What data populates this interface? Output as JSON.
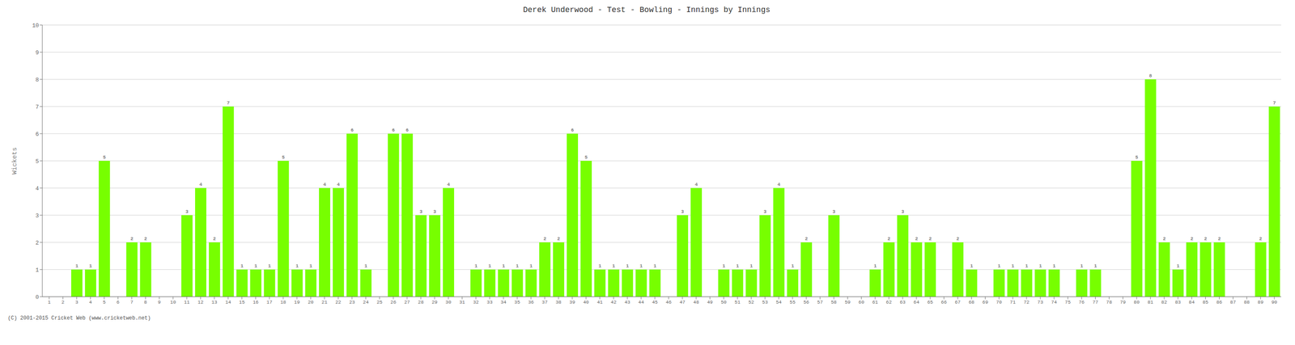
{
  "chart_data": {
    "type": "bar",
    "title": "Derek Underwood - Test - Bowling - Innings by Innings",
    "ylabel": "Wickets",
    "categories": [
      "1",
      "2",
      "3",
      "4",
      "5",
      "6",
      "7",
      "8",
      "9",
      "10",
      "11",
      "12",
      "13",
      "14",
      "15",
      "16",
      "17",
      "18",
      "19",
      "20",
      "21",
      "22",
      "23",
      "24",
      "25",
      "26",
      "27",
      "28",
      "29",
      "30",
      "31",
      "32",
      "33",
      "34",
      "35",
      "36",
      "37",
      "38",
      "39",
      "40",
      "41",
      "42",
      "43",
      "44",
      "45",
      "46",
      "47",
      "48",
      "49",
      "50",
      "51",
      "52",
      "53",
      "54",
      "55",
      "56",
      "57",
      "58",
      "59",
      "60",
      "61",
      "62",
      "63",
      "64",
      "65",
      "66",
      "67",
      "68",
      "69",
      "70",
      "71",
      "72",
      "73",
      "74",
      "75",
      "76",
      "77",
      "78",
      "79",
      "80",
      "81",
      "82",
      "83",
      "84",
      "85",
      "86",
      "87",
      "88",
      "89",
      "90"
    ],
    "values": [
      0,
      0,
      1,
      1,
      5,
      0,
      2,
      2,
      0,
      0,
      3,
      4,
      2,
      7,
      1,
      1,
      1,
      5,
      1,
      1,
      4,
      4,
      6,
      1,
      0,
      6,
      6,
      3,
      3,
      4,
      0,
      1,
      1,
      1,
      1,
      1,
      2,
      2,
      6,
      5,
      1,
      1,
      1,
      1,
      1,
      0,
      3,
      4,
      0,
      1,
      1,
      1,
      3,
      4,
      1,
      2,
      0,
      3,
      0,
      0,
      1,
      2,
      3,
      2,
      2,
      0,
      2,
      1,
      0,
      1,
      1,
      1,
      1,
      1,
      0,
      1,
      1,
      0,
      0,
      5,
      8,
      2,
      1,
      2,
      2,
      2,
      0,
      0,
      2,
      7
    ],
    "color": "#77ff00",
    "ylim": [
      0,
      10
    ],
    "yticks": [
      0,
      1,
      2,
      3,
      4,
      5,
      6,
      7,
      8,
      9,
      10
    ],
    "grid": true,
    "data_labels": true,
    "annotations": [
      "(C) 2001-2015 Cricket Web (www.cricketweb.net)"
    ]
  }
}
